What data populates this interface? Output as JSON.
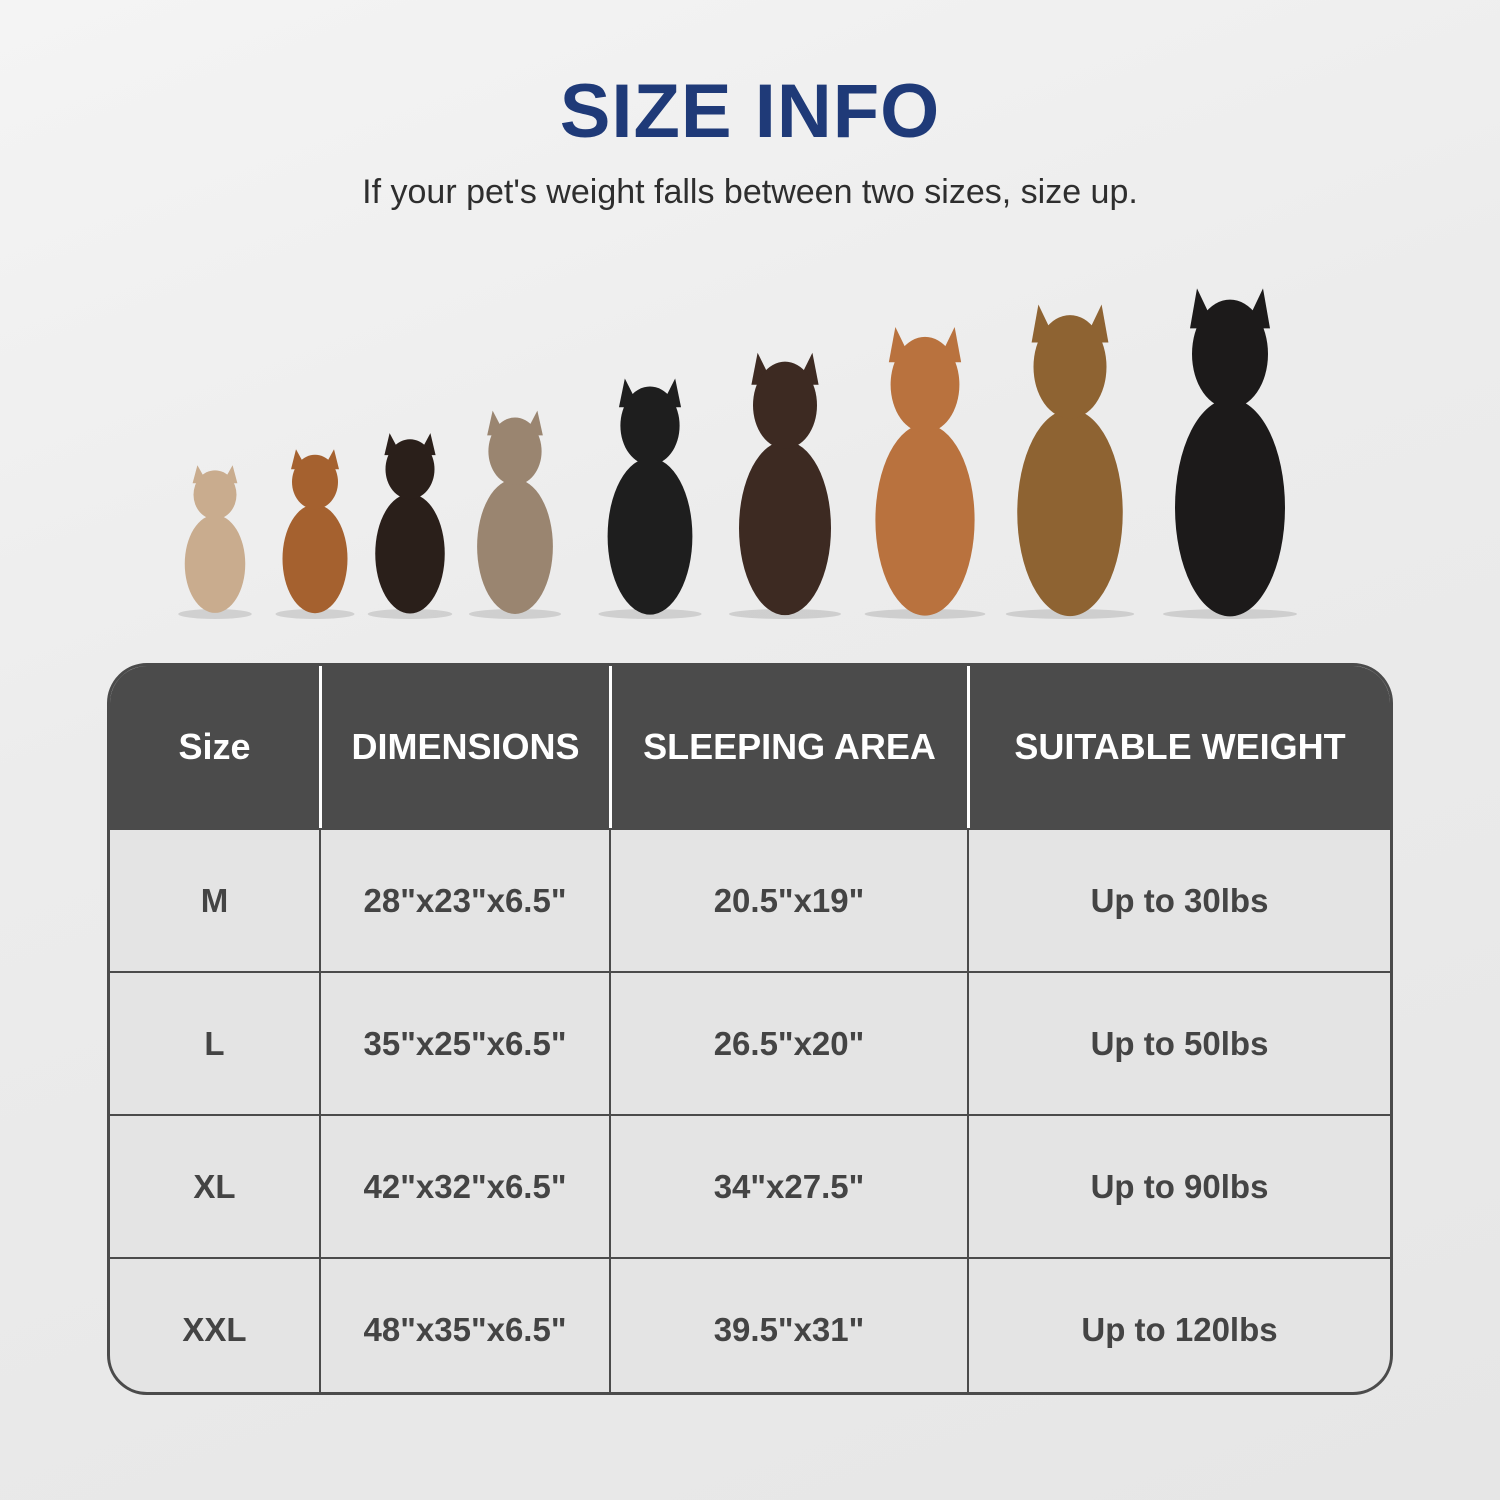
{
  "title": "SIZE INFO",
  "subtitle": "If your pet's weight falls between two sizes, size up.",
  "colors": {
    "title": "#1f3a78",
    "header_bg": "#4b4b4b",
    "row_bg": "#e4e4e4"
  },
  "dogs": [
    {
      "color": "#c9ac8e",
      "scale": 0.45
    },
    {
      "color": "#a5612f",
      "scale": 0.5
    },
    {
      "color": "#2a1f1a",
      "scale": 0.55
    },
    {
      "color": "#9a8570",
      "scale": 0.62
    },
    {
      "color": "#1e1e1e",
      "scale": 0.72
    },
    {
      "color": "#3d2a22",
      "scale": 0.8
    },
    {
      "color": "#b9723e",
      "scale": 0.88
    },
    {
      "color": "#8e6332",
      "scale": 0.95
    },
    {
      "color": "#1c1a1a",
      "scale": 1.0
    }
  ],
  "table": {
    "headers": [
      "Size",
      "DIMENSIONS",
      "SLEEPING AREA",
      "SUITABLE WEIGHT"
    ],
    "rows": [
      [
        "M",
        "28\"x23\"x6.5\"",
        "20.5\"x19\"",
        "Up to 30lbs"
      ],
      [
        "L",
        "35\"x25\"x6.5\"",
        "26.5\"x20\"",
        "Up to 50lbs"
      ],
      [
        "XL",
        "42\"x32\"x6.5\"",
        "34\"x27.5\"",
        "Up to 90lbs"
      ],
      [
        "XXL",
        "48\"x35\"x6.5\"",
        "39.5\"x31\"",
        "Up to 120lbs"
      ]
    ]
  }
}
